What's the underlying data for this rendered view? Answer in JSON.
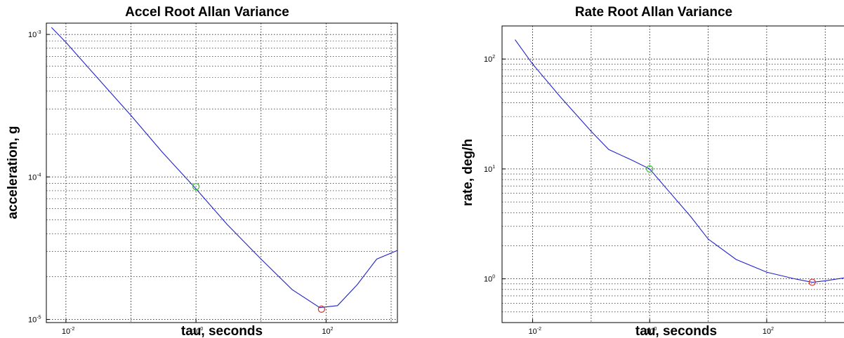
{
  "chart_data": [
    {
      "type": "line",
      "title": "Accel Root Allan Variance",
      "xlabel": "tau, seconds",
      "ylabel": "acceleration, g",
      "xscale": "log",
      "yscale": "log",
      "xlim": [
        0.005,
        1250
      ],
      "ylim": [
        9.5e-06,
        0.0012
      ],
      "grid": true,
      "xticks": [
        0.01,
        1,
        100
      ],
      "yticks": [
        1e-05,
        0.0001,
        0.001
      ],
      "xtick_labels": [
        {
          "base": "10",
          "exp": "-2"
        },
        {
          "base": "10",
          "exp": "0"
        },
        {
          "base": "10",
          "exp": "2"
        }
      ],
      "ytick_labels": [
        {
          "base": "10",
          "exp": "-5"
        },
        {
          "base": "10",
          "exp": "-4"
        },
        {
          "base": "10",
          "exp": "-3"
        }
      ],
      "series": [
        {
          "color": "#2222cc",
          "x": [
            0.006,
            0.01,
            0.03,
            0.1,
            0.3,
            1,
            3,
            10,
            30,
            80,
            150,
            300,
            600,
            1250
          ],
          "y": [
            0.00112,
            0.00088,
            0.0005,
            0.00027,
            0.00015,
            8.25e-05,
            4.65e-05,
            2.65e-05,
            1.62e-05,
            1.21e-05,
            1.25e-05,
            1.75e-05,
            2.65e-05,
            3.05e-05
          ]
        }
      ],
      "markers": [
        {
          "color": "#33bb33",
          "x": 1,
          "y": 8.55e-05
        },
        {
          "color": "#cc3333",
          "x": 85,
          "y": 1.18e-05
        }
      ]
    },
    {
      "type": "line",
      "title": "Rate Root Allan Variance",
      "xlabel": "tau, seconds",
      "ylabel": "rate, deg/h",
      "xscale": "log",
      "yscale": "log",
      "xlim": [
        0.003,
        3000
      ],
      "ylim": [
        0.4,
        200
      ],
      "grid": true,
      "xticks": [
        0.01,
        1,
        100
      ],
      "yticks": [
        1,
        10,
        100
      ],
      "xtick_labels": [
        {
          "base": "10",
          "exp": "-2"
        },
        {
          "base": "10",
          "exp": "0"
        },
        {
          "base": "10",
          "exp": "2"
        }
      ],
      "ytick_labels": [
        {
          "base": "10",
          "exp": "0"
        },
        {
          "base": "10",
          "exp": "1"
        },
        {
          "base": "10",
          "exp": "2"
        }
      ],
      "series": [
        {
          "color": "#2222cc",
          "x": [
            0.005,
            0.01,
            0.03,
            0.1,
            0.2,
            0.5,
            1,
            2,
            5,
            10,
            30,
            100,
            300,
            600,
            1000,
            3000
          ],
          "y": [
            150,
            90,
            45,
            22,
            15,
            12,
            10,
            6.5,
            3.7,
            2.3,
            1.5,
            1.15,
            1.0,
            0.93,
            0.96,
            1.05
          ]
        }
      ],
      "markers": [
        {
          "color": "#33bb33",
          "x": 1,
          "y": 10
        },
        {
          "color": "#cc3333",
          "x": 600,
          "y": 0.93
        }
      ]
    }
  ]
}
